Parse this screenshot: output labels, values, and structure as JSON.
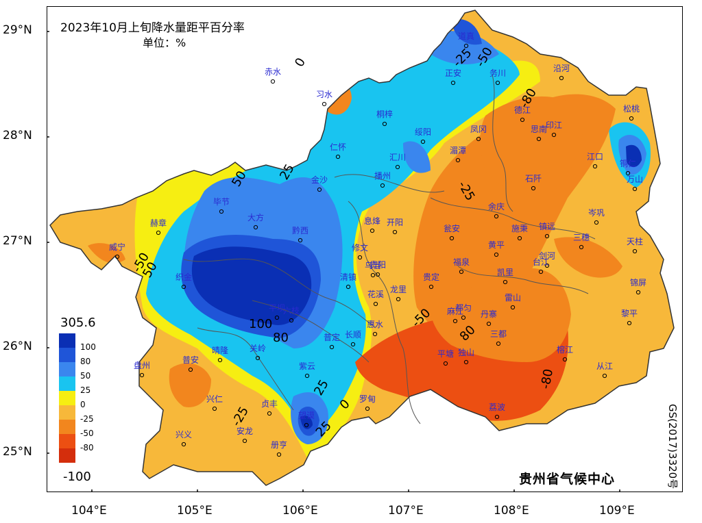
{
  "title": "2023年10月上旬降水量距平百分率",
  "unit": "单位：%",
  "agency": "贵州省气候中心",
  "approval_no": "GS(2017)3320号",
  "lat_labels": [
    "29°N",
    "28°N",
    "27°N",
    "26°N",
    "25°N"
  ],
  "lon_labels": [
    "104°E",
    "105°E",
    "106°E",
    "107°E",
    "108°E",
    "109°E"
  ],
  "legend": {
    "max": "305.6",
    "min": "-100",
    "levels": [
      "100",
      "80",
      "50",
      "25",
      "0",
      "-25",
      "-50",
      "-80"
    ],
    "colors": [
      "#0a2fb4",
      "#1f55d8",
      "#3a86ee",
      "#19c4f0",
      "#f6ee12",
      "#f7b83a",
      "#f2861e",
      "#ec4f12",
      "#d42e0c"
    ]
  },
  "contour_labels": [
    "50",
    "25",
    "0",
    "-25",
    "-50",
    "-80",
    "100",
    "80",
    "25",
    "-50",
    "-25",
    "25",
    "0",
    "-25",
    "-50",
    "50",
    "80",
    "-80"
  ],
  "stations": [
    "赤水",
    "习水",
    "道真",
    "正安",
    "务川",
    "沿河",
    "桐梓",
    "绥阳",
    "凤冈",
    "德江",
    "思南",
    "印江",
    "松桃",
    "江口",
    "铜仁",
    "万山",
    "仁怀",
    "汇川",
    "湄潭",
    "石阡",
    "金沙",
    "播州",
    "余庆",
    "岑巩",
    "毕节",
    "大方",
    "黔西",
    "息烽",
    "开阳",
    "瓮安",
    "施秉",
    "镇远",
    "三穗",
    "天柱",
    "赫章",
    "威宁",
    "修文",
    "乌当",
    "黄平",
    "剑河",
    "锦屏",
    "织金",
    "清镇",
    "贵阳",
    "龙里",
    "福泉",
    "凯里",
    "台江",
    "平坝",
    "花溪",
    "麻江",
    "雷山",
    "黎平",
    "六枝",
    "普定",
    "贵定",
    "都匀",
    "丹寨",
    "长顺",
    "惠水",
    "平塘",
    "独山",
    "三都",
    "榕江",
    "从江",
    "盘州",
    "普安",
    "晴隆",
    "关岭",
    "紫云",
    "兴仁",
    "贞丰",
    "罗甸",
    "荔波",
    "兴义",
    "安龙",
    "册亨",
    "望谟"
  ]
}
